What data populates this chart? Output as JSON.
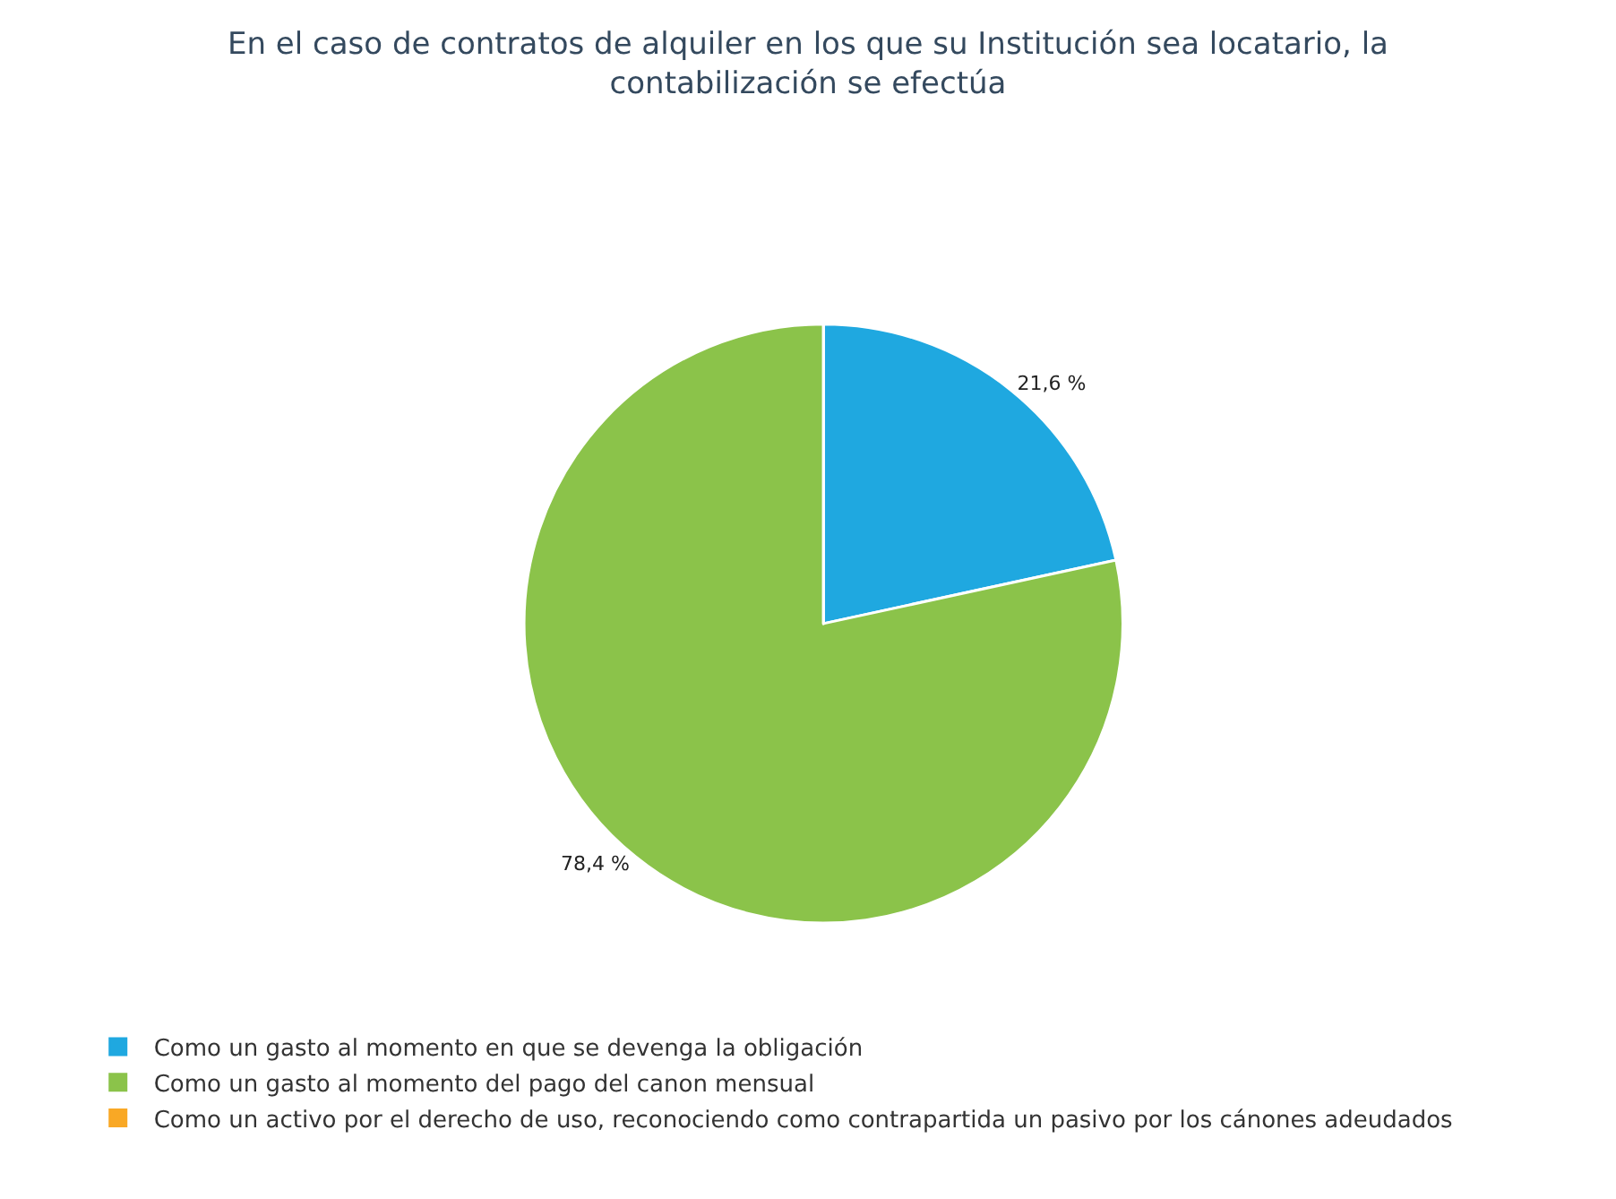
{
  "chart_data": {
    "type": "pie",
    "title": "En el caso de contratos de alquiler en los que su Institución sea locatario, la\ncontabilización se efectúa",
    "categories": [
      "Como un gasto al momento en que se devenga la obligación",
      "Como un gasto al momento del pago del canon mensual",
      "Como un activo por el derecho de uso, reconociendo como contrapartida un pasivo por los cánones adeudados"
    ],
    "values": [
      21.6,
      78.4,
      0
    ],
    "colors": [
      "#1fa8e0",
      "#8bc34a",
      "#f9a825"
    ],
    "value_labels": [
      "21,6 %",
      "78,4 %",
      null
    ],
    "legend": "bottom left"
  }
}
